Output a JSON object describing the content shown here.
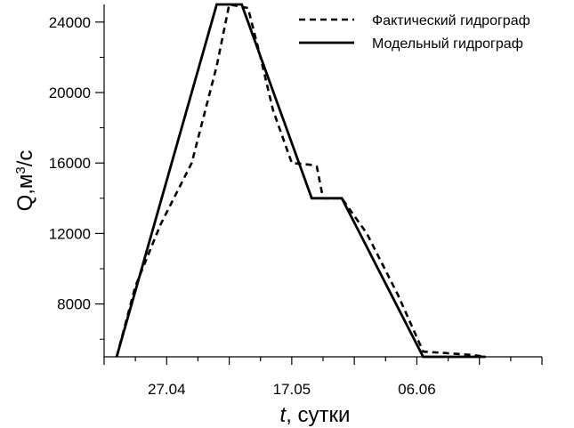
{
  "chart_data": {
    "type": "line",
    "x_units": "days",
    "xlim": [
      0,
      70
    ],
    "ylim": [
      5000,
      25000
    ],
    "y_ticks": [
      8000,
      12000,
      16000,
      20000,
      24000
    ],
    "x_tick_labels": [
      {
        "x": 10,
        "label": "27.04"
      },
      {
        "x": 30,
        "label": "17.05"
      },
      {
        "x": 50,
        "label": "06.06"
      }
    ],
    "xlabel": "t, сутки",
    "xlabel_var": "t",
    "xlabel_rest": ", сутки",
    "ylabel": "Q,м³/с",
    "ylabel_base": "Q,м",
    "ylabel_sup": "3",
    "ylabel_tail": "/с",
    "grid": false,
    "legend": "top-right",
    "series": [
      {
        "name": "Фактический гидрограф",
        "style": "dashed",
        "color": "#000000",
        "x": [
          2,
          5,
          9,
          14,
          18,
          20,
          23,
          25,
          27,
          30,
          33,
          34,
          35,
          38,
          42,
          47,
          51,
          55,
          59,
          61
        ],
        "y": [
          5000,
          9000,
          12500,
          16000,
          21500,
          25000,
          24800,
          22000,
          19000,
          16000,
          15900,
          15800,
          14000,
          14000,
          12000,
          8500,
          5300,
          5200,
          5100,
          5000
        ]
      },
      {
        "name": "Модельный гидрограф",
        "style": "solid",
        "color": "#000000",
        "x": [
          2,
          18,
          22,
          33.2,
          38,
          51,
          61
        ],
        "y": [
          5000,
          25000,
          25000,
          14000,
          14000,
          5000,
          5000
        ]
      }
    ]
  }
}
